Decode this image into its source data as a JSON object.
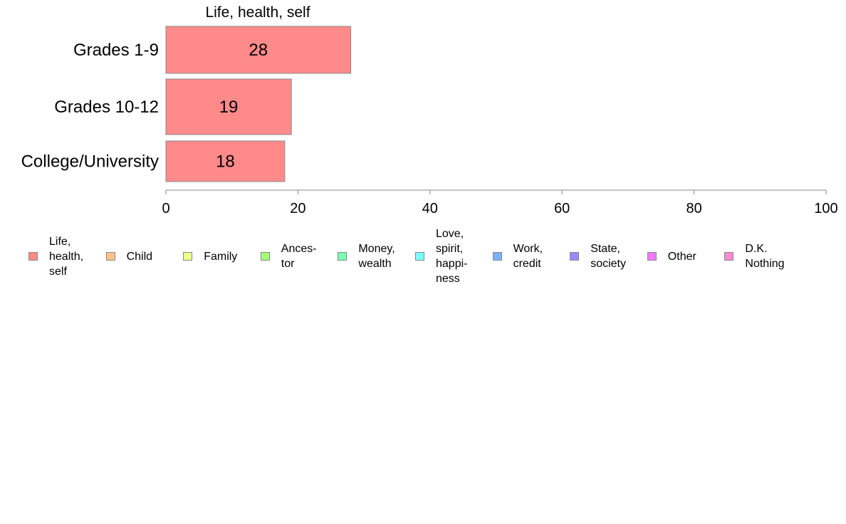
{
  "chart_data": {
    "type": "bar",
    "orientation": "horizontal",
    "title": "Life, health, self",
    "categories": [
      "Grades 1-9",
      "Grades 10-12",
      "College/University"
    ],
    "series": [
      {
        "name": "Life, health, self",
        "values": [
          28,
          19,
          18
        ],
        "color": "#ff8a8a"
      }
    ],
    "xlim": [
      0,
      100
    ],
    "xticks": [
      "0",
      "20",
      "40",
      "60",
      "80",
      "100"
    ],
    "data_labels": [
      "28",
      "19",
      "18"
    ],
    "grid": false,
    "legend_position": "bottom",
    "legend": [
      {
        "label": "Life,\nhealth,\nself",
        "color": "#ff8a8a"
      },
      {
        "label": "Child",
        "color": "#ffc38a"
      },
      {
        "label": "Family",
        "color": "#f2ff8a"
      },
      {
        "label": "Ances-\ntor",
        "color": "#a3ff7a"
      },
      {
        "label": "Money,\nwealth",
        "color": "#7affb0"
      },
      {
        "label": "Love,\nspirit,\nhappi-\nness",
        "color": "#7affff"
      },
      {
        "label": "Work,\ncredit",
        "color": "#7ab0ff"
      },
      {
        "label": "State,\nsociety",
        "color": "#9a8aff"
      },
      {
        "label": "Other",
        "color": "#ee7aff"
      },
      {
        "label": "D.K.\nNothing",
        "color": "#ff8ad0"
      }
    ]
  }
}
